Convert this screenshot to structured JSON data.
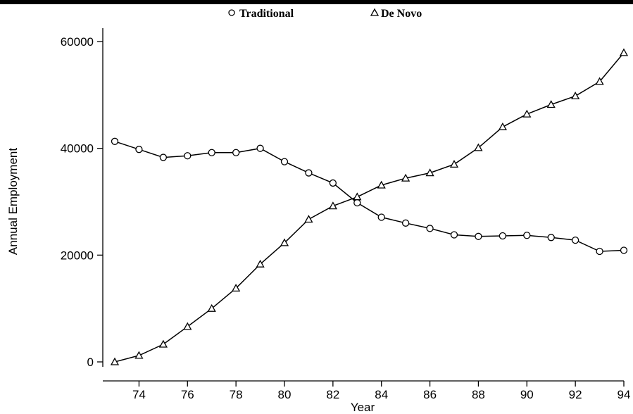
{
  "chart_data": {
    "type": "line",
    "title": "",
    "xlabel": "Year",
    "ylabel": "Annual Employment",
    "xlim": [
      73,
      94
    ],
    "ylim": [
      0,
      60000
    ],
    "x_ticks": [
      74,
      76,
      78,
      80,
      82,
      84,
      86,
      88,
      90,
      92,
      94
    ],
    "y_ticks": [
      0,
      20000,
      40000,
      60000
    ],
    "legend_position": "top",
    "grid": false,
    "x": [
      73,
      74,
      75,
      76,
      77,
      78,
      79,
      80,
      81,
      82,
      83,
      84,
      85,
      86,
      87,
      88,
      89,
      90,
      91,
      92,
      93,
      94
    ],
    "series": [
      {
        "name": "Traditional",
        "marker": "circle",
        "values": [
          41300,
          39800,
          38300,
          38600,
          39200,
          39200,
          40000,
          37500,
          35400,
          33500,
          29800,
          27100,
          26000,
          25000,
          23800,
          23500,
          23600,
          23700,
          23300,
          22800,
          20700,
          20900
        ]
      },
      {
        "name": "De Novo",
        "marker": "triangle",
        "values": [
          0,
          1200,
          3300,
          6600,
          10000,
          13800,
          18300,
          22300,
          26700,
          29200,
          30900,
          33100,
          34400,
          35400,
          37000,
          40100,
          44000,
          46400,
          48200,
          49800,
          52500,
          57900
        ]
      }
    ]
  }
}
